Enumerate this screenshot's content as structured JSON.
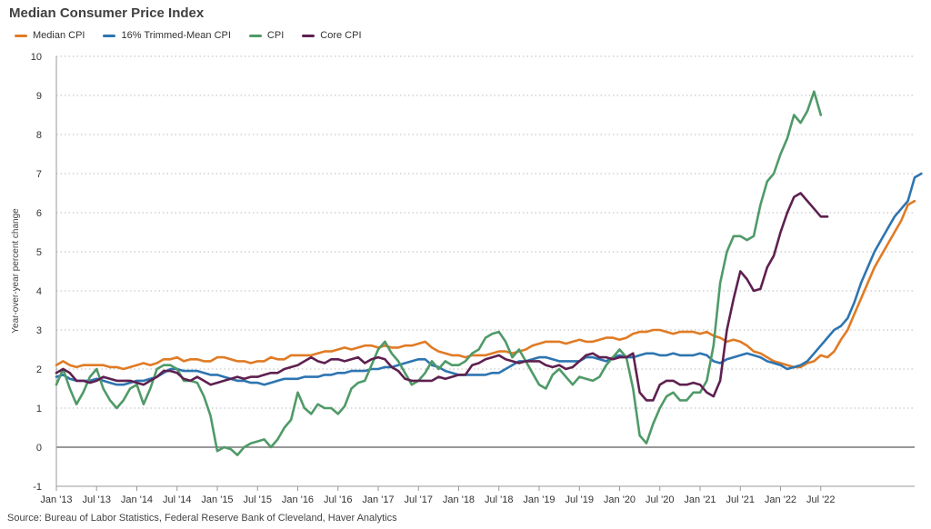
{
  "chart_data": {
    "type": "line",
    "title": "Median Consumer Price Index",
    "ylabel": "Year-over-year percent change",
    "xlabel": "",
    "ylim": [
      -1,
      10
    ],
    "yticks": [
      -1,
      0,
      1,
      2,
      3,
      4,
      5,
      6,
      7,
      8,
      9,
      10
    ],
    "grid": "horizontal dotted",
    "legend_position": "top-left",
    "source": "Source: Bureau of Labor Statistics, Federal Reserve Bank of Cleveland, Haver Analytics",
    "x_start": "Jan '13",
    "x_end": "Jul '22",
    "x_ticks": [
      "Jan '13",
      "Jul '13",
      "Jan '14",
      "Jul '14",
      "Jan '15",
      "Jul '15",
      "Jan '16",
      "Jul '16",
      "Jan '17",
      "Jul '17",
      "Jan '18",
      "Jul '18",
      "Jan '19",
      "Jul '19",
      "Jan '20",
      "Jul '20",
      "Jan '21",
      "Jul '21",
      "Jan '22",
      "Jul '22"
    ],
    "series": [
      {
        "name": "Median CPI",
        "color": "#e07b25",
        "values": [
          2.1,
          2.2,
          2.1,
          2.05,
          2.1,
          2.1,
          2.1,
          2.1,
          2.05,
          2.05,
          2.0,
          2.05,
          2.1,
          2.15,
          2.1,
          2.15,
          2.25,
          2.25,
          2.3,
          2.2,
          2.25,
          2.25,
          2.2,
          2.2,
          2.3,
          2.3,
          2.25,
          2.2,
          2.2,
          2.15,
          2.2,
          2.2,
          2.3,
          2.25,
          2.25,
          2.35,
          2.35,
          2.35,
          2.35,
          2.4,
          2.45,
          2.45,
          2.5,
          2.55,
          2.5,
          2.55,
          2.6,
          2.6,
          2.55,
          2.6,
          2.55,
          2.55,
          2.6,
          2.6,
          2.65,
          2.7,
          2.55,
          2.45,
          2.4,
          2.35,
          2.35,
          2.3,
          2.35,
          2.35,
          2.35,
          2.4,
          2.45,
          2.45,
          2.4,
          2.45,
          2.5,
          2.6,
          2.65,
          2.7,
          2.7,
          2.7,
          2.65,
          2.7,
          2.75,
          2.7,
          2.7,
          2.75,
          2.8,
          2.8,
          2.75,
          2.8,
          2.9,
          2.95,
          2.95,
          3.0,
          3.0,
          2.95,
          2.9,
          2.95,
          2.95,
          2.95,
          2.9,
          2.95,
          2.85,
          2.8,
          2.7,
          2.75,
          2.7,
          2.6,
          2.45,
          2.4,
          2.3,
          2.2,
          2.15,
          2.1,
          2.05,
          2.05,
          2.15,
          2.2,
          2.35,
          2.3,
          2.45,
          2.75,
          3.0,
          3.4,
          3.8,
          4.2,
          4.6,
          4.9,
          5.2,
          5.5,
          5.8,
          6.2,
          6.3
        ]
      },
      {
        "name": "16% Trimmed-Mean CPI",
        "color": "#2e75b0",
        "values": [
          1.8,
          1.85,
          1.75,
          1.7,
          1.7,
          1.7,
          1.75,
          1.7,
          1.65,
          1.6,
          1.6,
          1.65,
          1.7,
          1.7,
          1.75,
          1.8,
          1.9,
          2.0,
          2.0,
          1.95,
          1.95,
          1.95,
          1.9,
          1.85,
          1.85,
          1.8,
          1.75,
          1.7,
          1.7,
          1.65,
          1.65,
          1.6,
          1.65,
          1.7,
          1.75,
          1.75,
          1.75,
          1.8,
          1.8,
          1.8,
          1.85,
          1.85,
          1.9,
          1.9,
          1.95,
          1.95,
          1.95,
          2.0,
          2.0,
          2.05,
          2.05,
          2.1,
          2.15,
          2.2,
          2.25,
          2.25,
          2.1,
          2.05,
          1.95,
          1.9,
          1.85,
          1.85,
          1.85,
          1.85,
          1.85,
          1.9,
          1.9,
          2.0,
          2.1,
          2.2,
          2.2,
          2.25,
          2.3,
          2.3,
          2.25,
          2.2,
          2.2,
          2.2,
          2.2,
          2.3,
          2.3,
          2.25,
          2.2,
          2.3,
          2.35,
          2.3,
          2.3,
          2.35,
          2.4,
          2.4,
          2.35,
          2.35,
          2.4,
          2.35,
          2.35,
          2.35,
          2.4,
          2.35,
          2.2,
          2.15,
          2.25,
          2.3,
          2.35,
          2.4,
          2.35,
          2.3,
          2.2,
          2.15,
          2.1,
          2.0,
          2.05,
          2.1,
          2.2,
          2.4,
          2.6,
          2.8,
          3.0,
          3.1,
          3.3,
          3.7,
          4.2,
          4.6,
          5.0,
          5.3,
          5.6,
          5.9,
          6.1,
          6.3,
          6.9,
          7.0
        ]
      },
      {
        "name": "CPI",
        "color": "#4f9a68",
        "values": [
          1.6,
          2.0,
          1.5,
          1.1,
          1.4,
          1.8,
          2.0,
          1.5,
          1.2,
          1.0,
          1.2,
          1.5,
          1.6,
          1.1,
          1.5,
          2.0,
          2.1,
          2.1,
          2.0,
          1.7,
          1.7,
          1.65,
          1.3,
          0.8,
          -0.1,
          0.0,
          -0.05,
          -0.2,
          0.0,
          0.1,
          0.15,
          0.2,
          0.0,
          0.2,
          0.5,
          0.7,
          1.4,
          1.0,
          0.85,
          1.1,
          1.0,
          1.0,
          0.85,
          1.05,
          1.5,
          1.65,
          1.7,
          2.1,
          2.5,
          2.7,
          2.4,
          2.2,
          1.9,
          1.6,
          1.7,
          1.9,
          2.2,
          2.0,
          2.2,
          2.1,
          2.1,
          2.2,
          2.4,
          2.5,
          2.8,
          2.9,
          2.95,
          2.7,
          2.3,
          2.5,
          2.2,
          1.9,
          1.6,
          1.5,
          1.85,
          2.0,
          1.8,
          1.6,
          1.8,
          1.75,
          1.7,
          1.8,
          2.1,
          2.3,
          2.5,
          2.3,
          1.5,
          0.3,
          0.1,
          0.6,
          1.0,
          1.3,
          1.4,
          1.2,
          1.2,
          1.4,
          1.4,
          1.7,
          2.6,
          4.2,
          5.0,
          5.4,
          5.4,
          5.3,
          5.4,
          6.2,
          6.8,
          7.0,
          7.5,
          7.9,
          8.5,
          8.3,
          8.6,
          9.1,
          8.5
        ]
      },
      {
        "name": "Core CPI",
        "color": "#5e2050",
        "values": [
          1.9,
          2.0,
          1.9,
          1.7,
          1.7,
          1.65,
          1.7,
          1.8,
          1.75,
          1.7,
          1.7,
          1.7,
          1.65,
          1.6,
          1.7,
          1.8,
          1.95,
          1.95,
          1.9,
          1.75,
          1.7,
          1.8,
          1.7,
          1.6,
          1.65,
          1.7,
          1.75,
          1.8,
          1.75,
          1.8,
          1.8,
          1.85,
          1.9,
          1.9,
          2.0,
          2.05,
          2.1,
          2.2,
          2.3,
          2.2,
          2.15,
          2.25,
          2.25,
          2.2,
          2.25,
          2.3,
          2.15,
          2.25,
          2.3,
          2.25,
          2.05,
          1.95,
          1.75,
          1.7,
          1.7,
          1.7,
          1.7,
          1.8,
          1.75,
          1.8,
          1.85,
          1.85,
          2.1,
          2.15,
          2.25,
          2.3,
          2.35,
          2.25,
          2.2,
          2.15,
          2.2,
          2.2,
          2.2,
          2.1,
          2.05,
          2.1,
          2.0,
          2.05,
          2.2,
          2.35,
          2.4,
          2.3,
          2.3,
          2.25,
          2.3,
          2.3,
          2.4,
          1.4,
          1.2,
          1.2,
          1.6,
          1.7,
          1.7,
          1.6,
          1.6,
          1.65,
          1.6,
          1.4,
          1.3,
          1.7,
          3.0,
          3.8,
          4.5,
          4.3,
          4.0,
          4.05,
          4.6,
          4.9,
          5.5,
          6.0,
          6.4,
          6.5,
          6.3,
          6.1,
          5.9,
          5.9
        ]
      }
    ]
  }
}
